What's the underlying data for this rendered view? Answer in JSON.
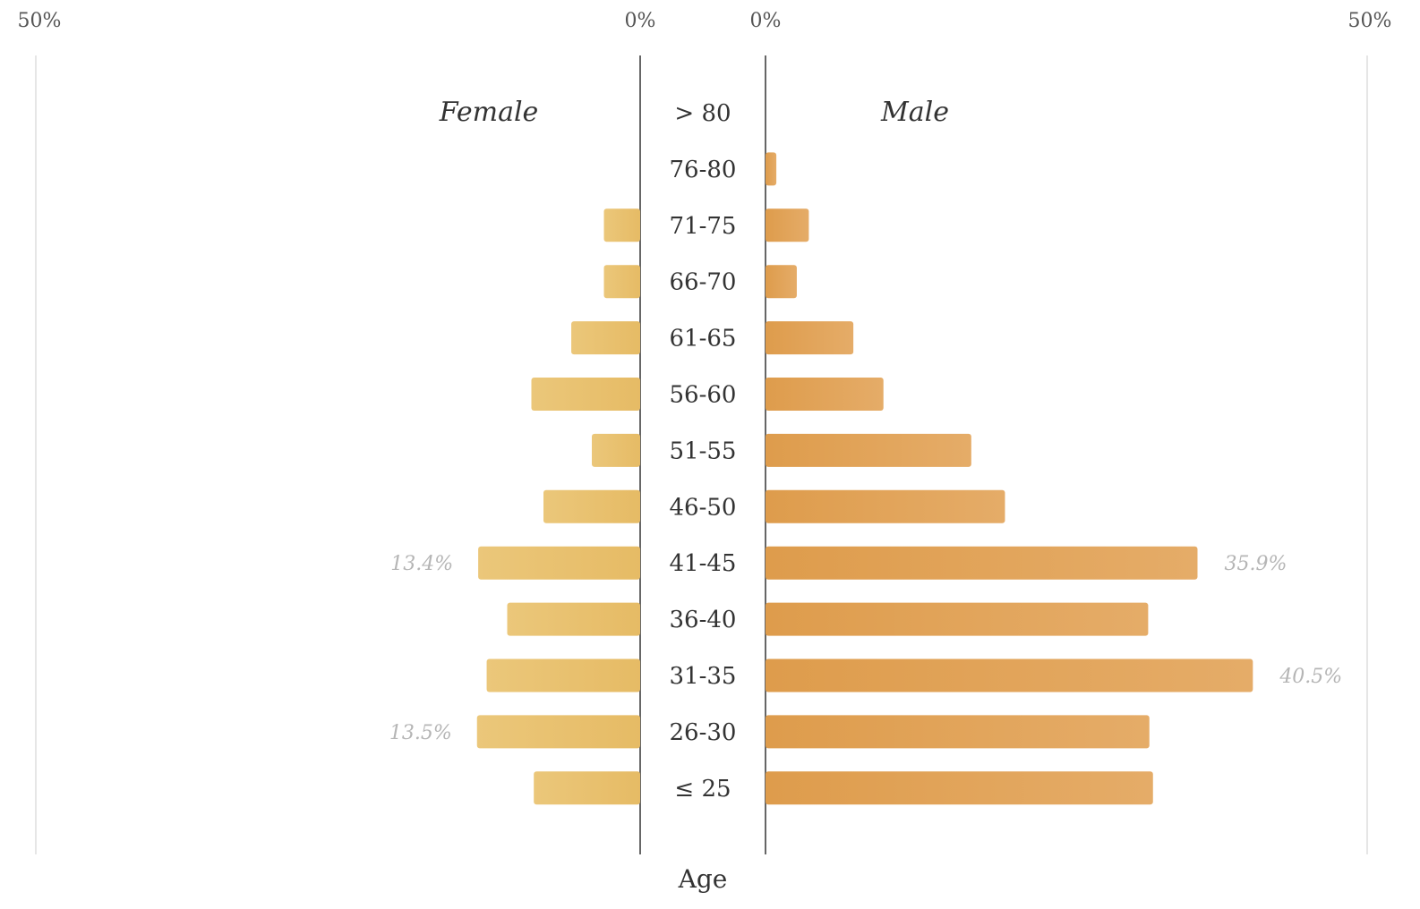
{
  "chart_data": {
    "type": "bar",
    "orientation": "horizontal",
    "layout": "population-pyramid",
    "categories": [
      "> 80",
      "76-80",
      "71-75",
      "66-70",
      "61-65",
      "56-60",
      "51-55",
      "46-50",
      "41-45",
      "36-40",
      "31-35",
      "26-30",
      "≤ 25"
    ],
    "series": [
      {
        "name": "Female",
        "side": "left",
        "color": "#e8c06e",
        "values": [
          0,
          0,
          3.0,
          3.0,
          5.7,
          9.0,
          4.0,
          8.0,
          13.4,
          11.0,
          12.7,
          13.5,
          8.8
        ]
      },
      {
        "name": "Male",
        "side": "right",
        "color": "#e0a052",
        "values": [
          0,
          0.9,
          3.6,
          2.6,
          7.3,
          9.8,
          17.1,
          19.9,
          35.9,
          31.8,
          40.5,
          31.9,
          32.2
        ]
      }
    ],
    "xlim": [
      0,
      50
    ],
    "ticks": {
      "left_outer": "50%",
      "left_inner": "0%",
      "right_inner": "0%",
      "right_outer": "50%"
    },
    "data_labels": [
      {
        "series": "Female",
        "category": "41-45",
        "text": "13.4%"
      },
      {
        "series": "Female",
        "category": "26-30",
        "text": "13.5%"
      },
      {
        "series": "Male",
        "category": "41-45",
        "text": "35.9%"
      },
      {
        "series": "Male",
        "category": "31-35",
        "text": "40.5%"
      }
    ],
    "axis_title": "Age",
    "grid": true,
    "legend": "none"
  }
}
